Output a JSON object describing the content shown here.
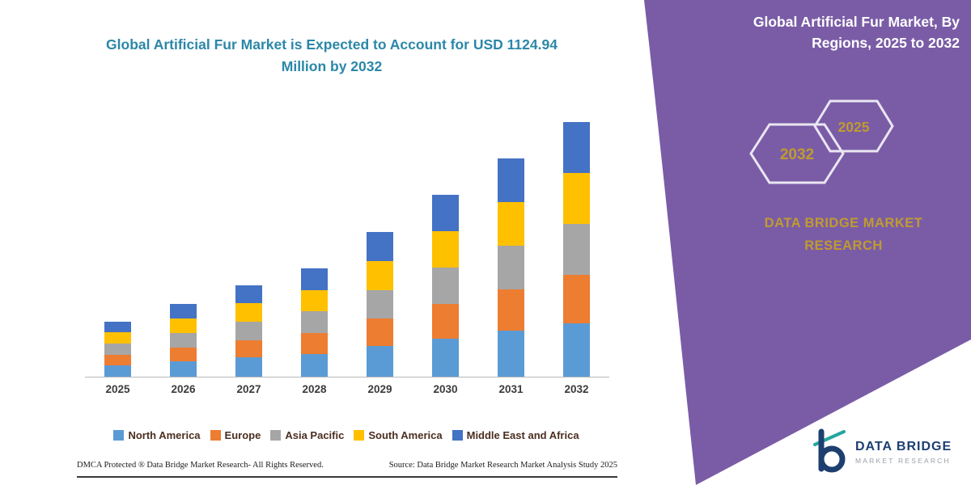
{
  "right_panel": {
    "heading": "Global Artificial Fur Market, By Regions, 2025 to 2032",
    "hexagons": [
      {
        "year": "2032"
      },
      {
        "year": "2025"
      }
    ],
    "brand": "DATA BRIDGE MARKET RESEARCH",
    "panel_color": "#7a5ca6",
    "accent_gold": "#bf9b30",
    "hex_stroke": "#eae6f3"
  },
  "logo": {
    "title": "DATA BRIDGE",
    "subtitle": "MARKET RESEARCH"
  },
  "footer": {
    "dmca": "DMCA Protected ® Data Bridge Market Research-  All Rights Reserved.",
    "source": "Source: Data Bridge Market Research  Market Analysis Study 2025"
  },
  "chart_data": {
    "type": "bar",
    "stacked": true,
    "title": "Global Artificial Fur Market is Expected to Account for USD 1124.94 Million by 2032",
    "unit": "USD Million",
    "categories": [
      "2025",
      "2026",
      "2027",
      "2028",
      "2029",
      "2030",
      "2031",
      "2032"
    ],
    "series": [
      {
        "name": "North America",
        "color": "#5B9BD5",
        "values": [
          51,
          67,
          85,
          101,
          134,
          169,
          203,
          236
        ]
      },
      {
        "name": "Europe",
        "color": "#ED7D31",
        "values": [
          46,
          61,
          77,
          91,
          122,
          153,
          183,
          214
        ]
      },
      {
        "name": "Asia Pacific",
        "color": "#A6A6A6",
        "values": [
          49,
          64,
          81,
          96,
          128,
          161,
          193,
          225
        ]
      },
      {
        "name": "South America",
        "color": "#FFC000",
        "values": [
          49,
          64,
          81,
          96,
          128,
          161,
          193,
          225
        ]
      },
      {
        "name": "Middle East and Africa",
        "color": "#4472C4",
        "values": [
          48,
          64,
          81,
          96,
          128,
          161,
          193,
          224.94
        ]
      }
    ],
    "totals_estimated": [
      243,
      320,
      405,
      480,
      640,
      805,
      965,
      1124.94
    ],
    "values_estimated": true,
    "ylim": [
      0,
      1200
    ],
    "gridlines": false,
    "legend_position": "bottom"
  }
}
